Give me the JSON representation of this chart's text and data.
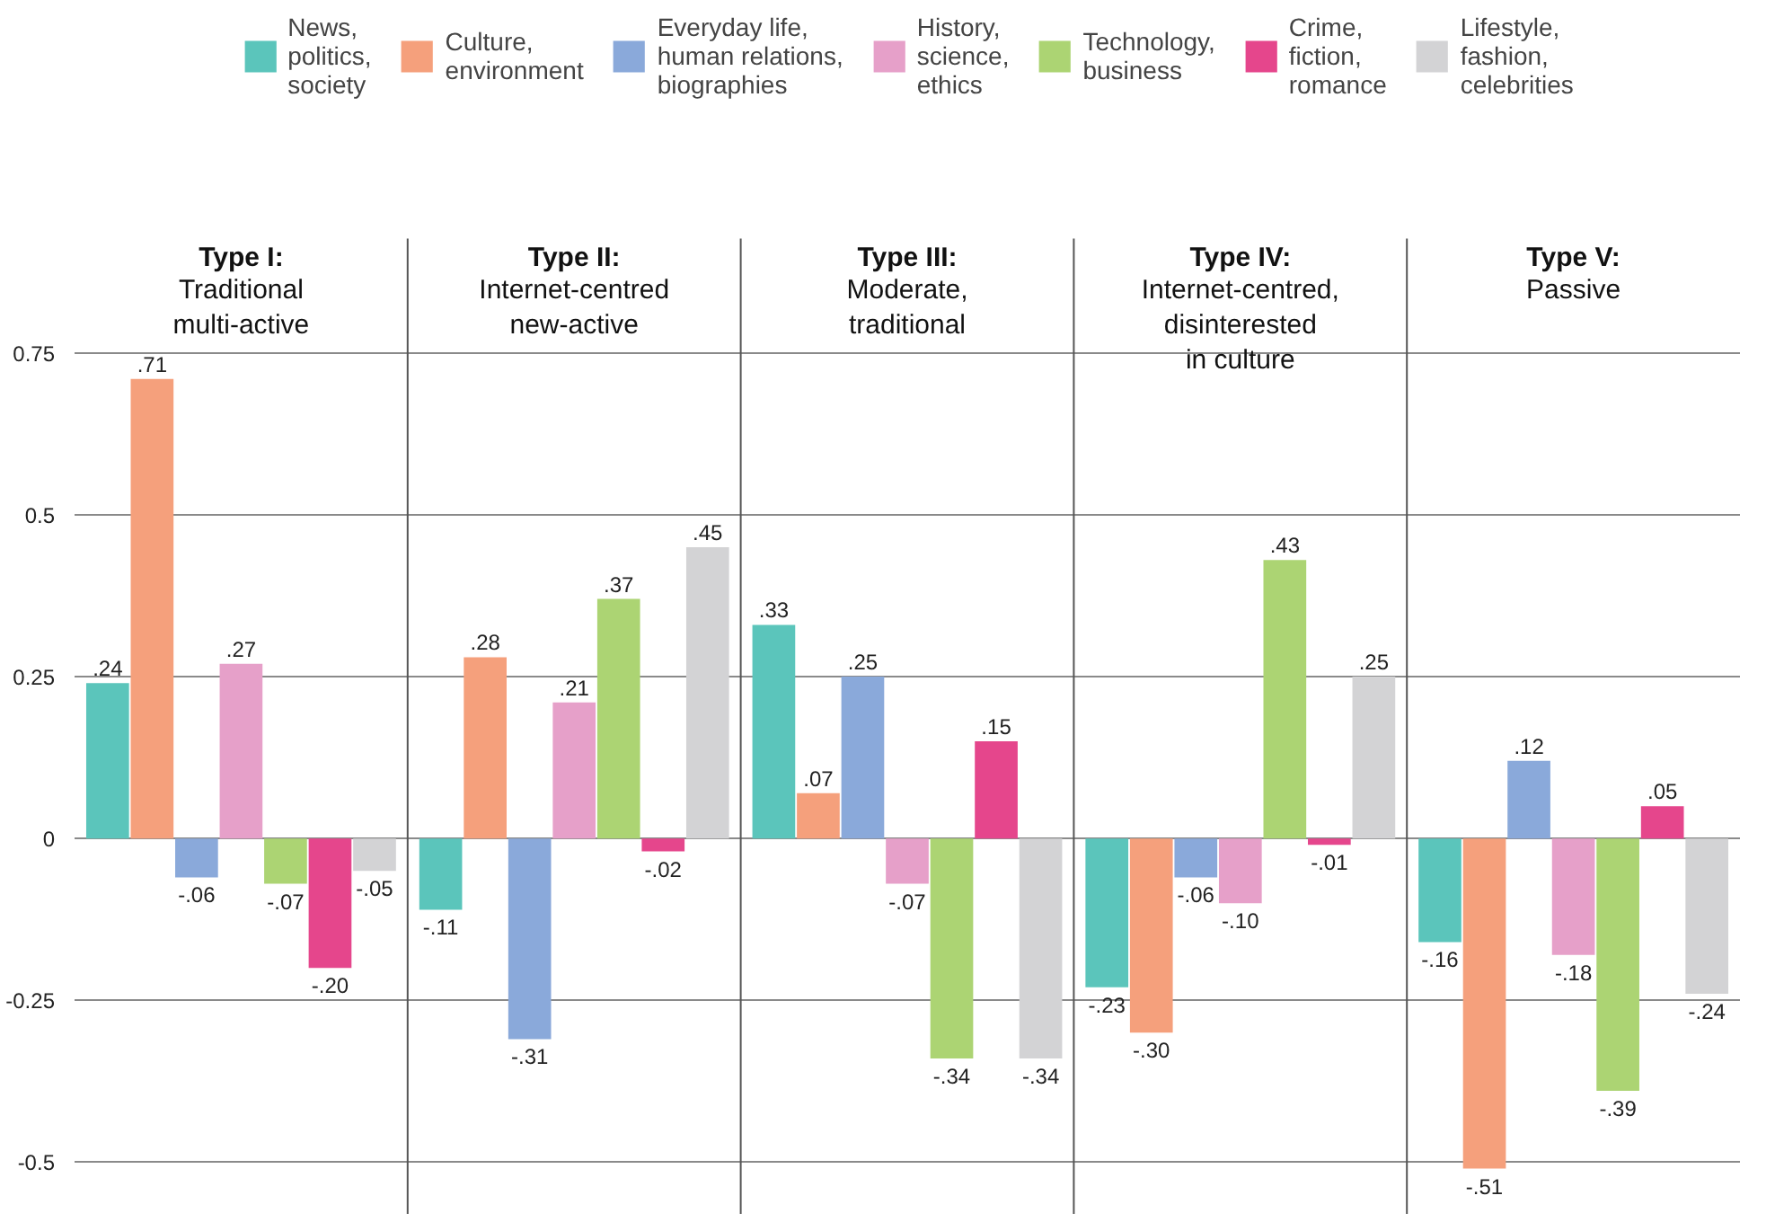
{
  "chart_data": {
    "type": "bar",
    "categories": [
      "Type I:\nTraditional\nmulti-active",
      "Type II:\nInternet-centred\nnew-active",
      "Type III:\nModerate,\ntraditional",
      "Type IV:\nInternet-centred,\ndisinterested\nin culture",
      "Type V:\nPassive"
    ],
    "series": [
      {
        "name": "News,\npolitics,\nsociety",
        "color": "#5bc5bb",
        "values": [
          0.24,
          -0.11,
          0.33,
          -0.23,
          -0.16
        ],
        "value_labels": [
          ".24",
          "-.11",
          ".33",
          "-.23",
          "-.16"
        ]
      },
      {
        "name": "Culture,\nenvironment",
        "color": "#f5a07c",
        "values": [
          0.71,
          0.28,
          0.07,
          -0.3,
          -0.51
        ],
        "value_labels": [
          ".71",
          ".28",
          ".07",
          "-.30",
          "-.51"
        ]
      },
      {
        "name": "Everyday life,\nhuman relations,\nbiographies",
        "color": "#8aa9da",
        "values": [
          -0.06,
          -0.31,
          0.25,
          -0.06,
          0.12
        ],
        "value_labels": [
          "-.06",
          "-.31",
          ".25",
          "-.06",
          ".12"
        ]
      },
      {
        "name": "History,\nscience,\nethics",
        "color": "#e6a0c9",
        "values": [
          0.27,
          0.21,
          -0.07,
          -0.1,
          -0.18
        ],
        "value_labels": [
          ".27",
          ".21",
          "-.07",
          "-.10",
          "-.18"
        ]
      },
      {
        "name": "Technology,\nbusiness",
        "color": "#acd473",
        "values": [
          -0.07,
          0.37,
          -0.34,
          0.43,
          -0.39
        ],
        "value_labels": [
          "-.07",
          ".37",
          "-.34",
          ".43",
          "-.39"
        ]
      },
      {
        "name": "Crime,\nfiction,\nromance",
        "color": "#e5468c",
        "values": [
          -0.2,
          -0.02,
          0.15,
          -0.01,
          0.05
        ],
        "value_labels": [
          "-.20",
          "-.02",
          ".15",
          "-.01",
          ".05"
        ]
      },
      {
        "name": "Lifestyle,\nfashion,\ncelebrities",
        "color": "#d3d3d5",
        "values": [
          -0.05,
          0.45,
          -0.34,
          0.25,
          -0.24
        ],
        "value_labels": [
          "-.05",
          ".45",
          "-.34",
          ".25",
          "-.24"
        ]
      }
    ],
    "ylim": [
      -0.58,
      1.28
    ],
    "yticks": [
      {
        "value": -0.5,
        "label": "-0.5"
      },
      {
        "value": -0.25,
        "label": "-0.25"
      },
      0,
      {
        "value": 0.25,
        "label": "0.25"
      },
      {
        "value": 0.5,
        "label": "0.5"
      },
      {
        "value": 0.75,
        "label": "0.75"
      }
    ],
    "grid": "y",
    "legend": "top"
  }
}
